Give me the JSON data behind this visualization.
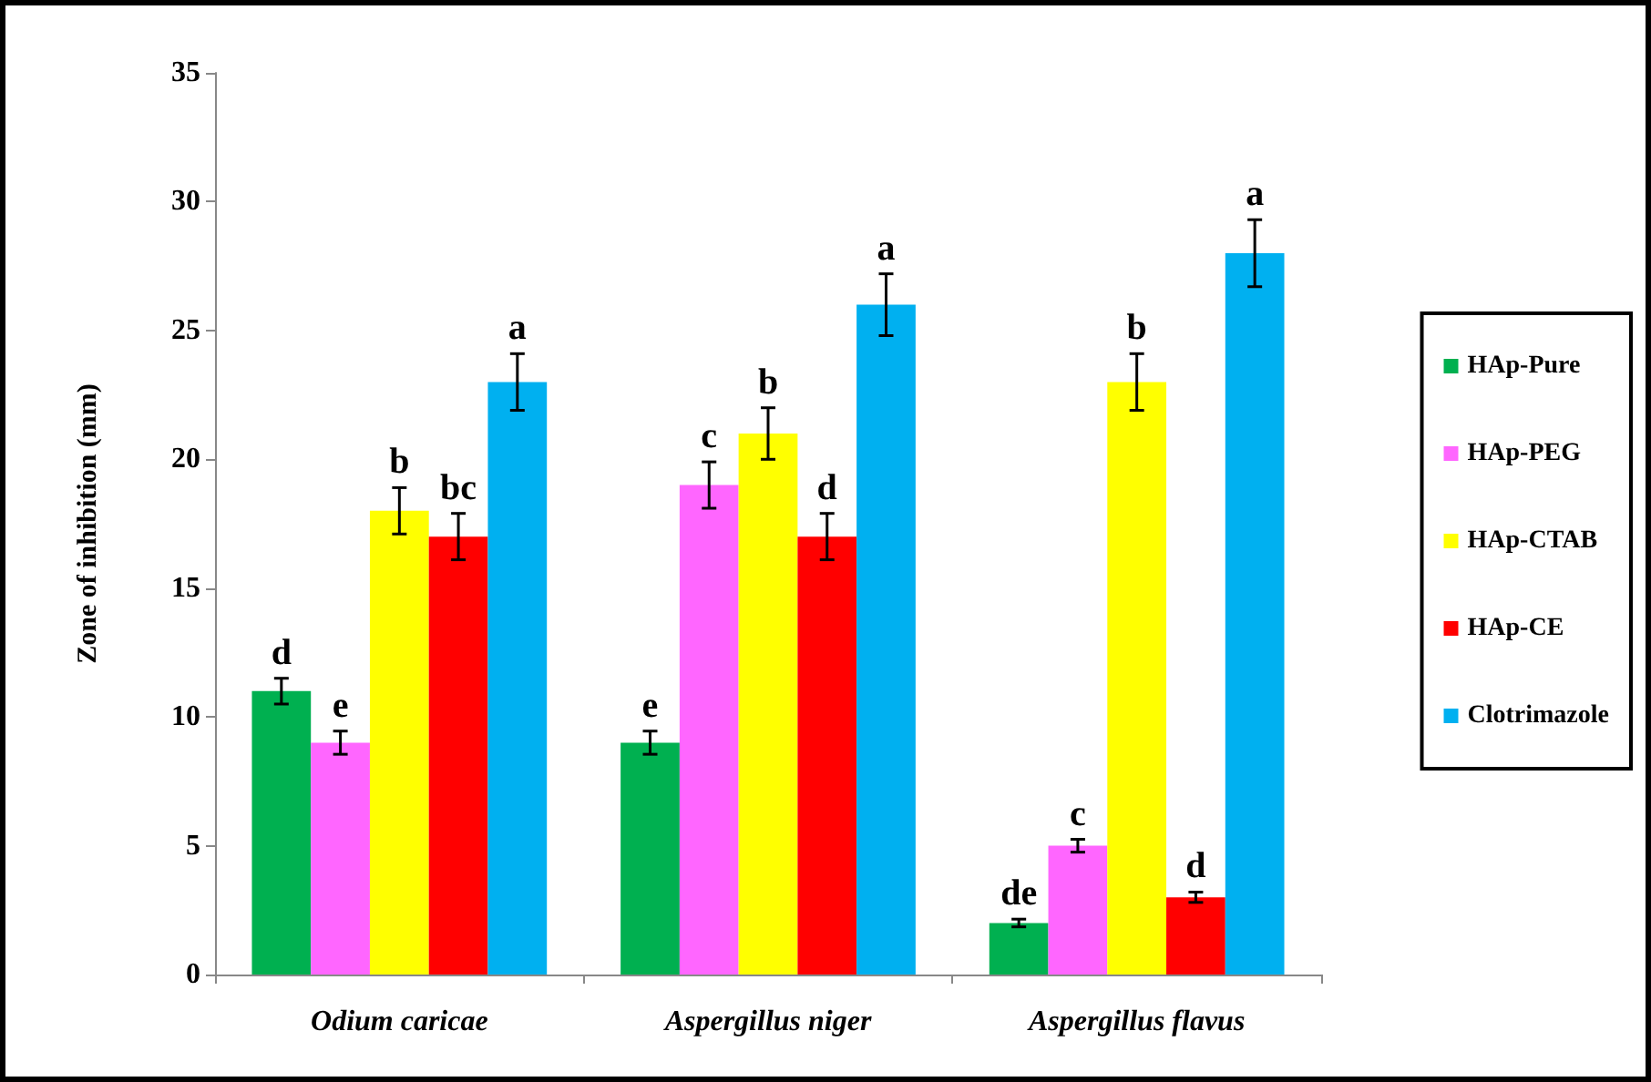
{
  "chart_data": {
    "type": "bar",
    "ylabel": "Zone of inhibition (mm)",
    "categories": [
      "Odium caricae",
      "Aspergillus niger",
      "Aspergillus flavus"
    ],
    "series": [
      {
        "name": "HAp-Pure",
        "color": "#00b050",
        "values": [
          11,
          9,
          2
        ],
        "errors": [
          0.5,
          0.45,
          0.15
        ],
        "value_labels": [
          "d",
          "e",
          "de"
        ]
      },
      {
        "name": "HAp-PEG",
        "color": "#ff66ff",
        "values": [
          9,
          19,
          5
        ],
        "errors": [
          0.45,
          0.9,
          0.25
        ],
        "value_labels": [
          "e",
          "c",
          "c"
        ]
      },
      {
        "name": "HAp-CTAB",
        "color": "#ffff00",
        "values": [
          18,
          21,
          23
        ],
        "errors": [
          0.9,
          1.0,
          1.1
        ],
        "value_labels": [
          "b",
          "b",
          "b"
        ]
      },
      {
        "name": "HAp-CE",
        "color": "#ff0000",
        "values": [
          17,
          17,
          3
        ],
        "errors": [
          0.9,
          0.9,
          0.2
        ],
        "value_labels": [
          "bc",
          "d",
          "d"
        ]
      },
      {
        "name": "Clotrimazole",
        "color": "#00b0f0",
        "values": [
          23,
          26,
          28
        ],
        "errors": [
          1.1,
          1.2,
          1.3
        ],
        "value_labels": [
          "a",
          "a",
          "a"
        ]
      }
    ],
    "ylim": [
      0,
      35
    ],
    "yticks": [
      0,
      5,
      10,
      15,
      20,
      25,
      30,
      35
    ],
    "grid": false,
    "legend": "right"
  }
}
